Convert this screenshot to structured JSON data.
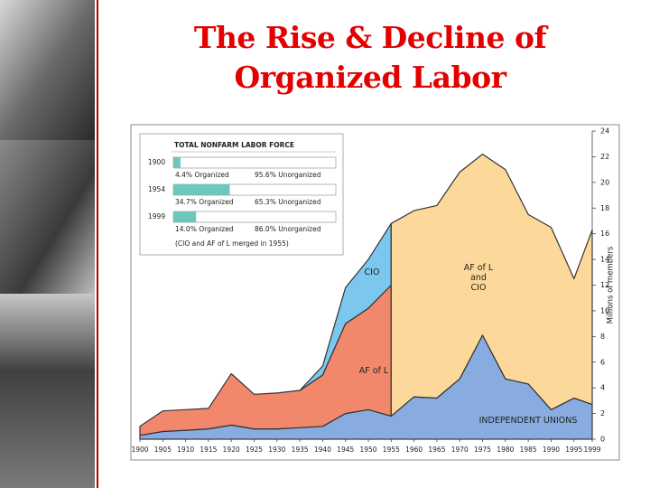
{
  "slide": {
    "title": "The Rise & Decline of Organized Labor"
  },
  "chart_data": {
    "type": "stacked-area",
    "y_label": "Millions of members",
    "x": [
      1900,
      1905,
      1910,
      1915,
      1920,
      1925,
      1930,
      1935,
      1940,
      1945,
      1950,
      1955,
      1960,
      1965,
      1970,
      1975,
      1980,
      1985,
      1990,
      1995,
      1999
    ],
    "xlim": [
      1900,
      1999
    ],
    "xticks": [
      1900,
      1905,
      1910,
      1915,
      1920,
      1925,
      1930,
      1935,
      1940,
      1945,
      1950,
      1955,
      1960,
      1965,
      1970,
      1975,
      1980,
      1985,
      1990,
      1995,
      1999
    ],
    "ylim": [
      0,
      24
    ],
    "yticks": [
      0,
      2,
      4,
      6,
      8,
      10,
      12,
      14,
      16,
      18,
      20,
      22,
      24
    ],
    "series": [
      {
        "name": "INDEPENDENT UNIONS",
        "color": "#89ace0",
        "values": [
          0.3,
          0.6,
          0.7,
          0.8,
          1.1,
          0.8,
          0.8,
          0.9,
          1.0,
          2.0,
          2.3,
          1.8,
          3.3,
          3.2,
          4.7,
          8.1,
          4.7,
          4.3,
          2.3,
          3.2,
          2.7
        ]
      },
      {
        "name": "AF of L",
        "color": "#f2886b",
        "values": [
          0.7,
          1.6,
          1.6,
          1.6,
          4.0,
          2.7,
          2.8,
          2.9,
          4.0,
          7.0,
          7.9,
          10.2,
          null,
          null,
          null,
          null,
          null,
          null,
          null,
          null,
          null
        ]
      },
      {
        "name": "CIO",
        "color": "#7cc7ee",
        "values": [
          null,
          null,
          null,
          null,
          null,
          null,
          null,
          null,
          0.7,
          2.8,
          3.8,
          4.8,
          null,
          null,
          null,
          null,
          null,
          null,
          null,
          null,
          null
        ]
      },
      {
        "name": "AF of L and CIO",
        "color": "#fcd99b",
        "values": [
          null,
          null,
          null,
          null,
          null,
          null,
          null,
          null,
          null,
          null,
          null,
          null,
          14.5,
          15.0,
          16.1,
          14.1,
          16.3,
          13.2,
          14.2,
          9.3,
          13.6
        ]
      }
    ],
    "inset": {
      "title": "TOTAL NONFARM LABOR FORCE",
      "rows": [
        {
          "year": "1900",
          "values": [
            4.4,
            95.6
          ],
          "value_labels": [
            "4.4% Organized",
            "95.6% Unorganized"
          ]
        },
        {
          "year": "1954",
          "values": [
            34.7,
            65.3
          ],
          "value_labels": [
            "34.7% Organized",
            "65.3% Unorganized"
          ]
        },
        {
          "year": "1999",
          "values": [
            14.0,
            86.0
          ],
          "value_labels": [
            "14.0% Organized",
            "86.0% Unorganized"
          ]
        }
      ],
      "note": "(CIO and AF of L merged in 1955)"
    }
  }
}
